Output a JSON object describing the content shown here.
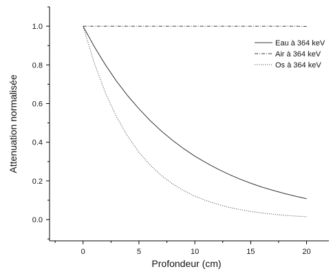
{
  "chart_data": {
    "type": "line",
    "title": "",
    "xlabel": "Profondeur (cm)",
    "ylabel": "Attenuation normalisée",
    "xlim": [
      -3,
      22
    ],
    "ylim": [
      -0.11,
      1.1
    ],
    "x_ticks": [
      0,
      5,
      10,
      15,
      20
    ],
    "x_tick_labels": [
      "0",
      "5",
      "10",
      "15",
      "20"
    ],
    "y_ticks": [
      0.0,
      0.2,
      0.4,
      0.6,
      0.8,
      1.0
    ],
    "y_tick_labels": [
      "0.0",
      "0.2",
      "0.4",
      "0.6",
      "0.8",
      "1.0"
    ],
    "grid": false,
    "legend_position": "top-right",
    "colors": {
      "line": "#333333",
      "axis": "#000000"
    },
    "x": [
      0,
      1,
      2,
      3,
      4,
      5,
      6,
      7,
      8,
      9,
      10,
      11,
      12,
      13,
      14,
      15,
      16,
      17,
      18,
      19,
      20
    ],
    "series": [
      {
        "name": "Eau à 364 keV",
        "style": "solid",
        "values": [
          1.0,
          0.895,
          0.8,
          0.715,
          0.64,
          0.573,
          0.512,
          0.458,
          0.41,
          0.367,
          0.328,
          0.294,
          0.263,
          0.235,
          0.21,
          0.188,
          0.168,
          0.151,
          0.135,
          0.121,
          0.108
        ]
      },
      {
        "name": "Air à 364 keV",
        "style": "dashdot",
        "values": [
          1.0,
          1.0,
          1.0,
          1.0,
          1.0,
          1.0,
          1.0,
          1.0,
          1.0,
          1.0,
          1.0,
          1.0,
          1.0,
          1.0,
          1.0,
          1.0,
          1.0,
          1.0,
          1.0,
          1.0,
          0.999
        ]
      },
      {
        "name": "Os à 364 keV",
        "style": "dotted",
        "values": [
          1.0,
          0.81,
          0.655,
          0.531,
          0.43,
          0.348,
          0.282,
          0.228,
          0.185,
          0.15,
          0.121,
          0.098,
          0.08,
          0.064,
          0.052,
          0.042,
          0.034,
          0.028,
          0.022,
          0.018,
          0.015
        ]
      }
    ]
  }
}
